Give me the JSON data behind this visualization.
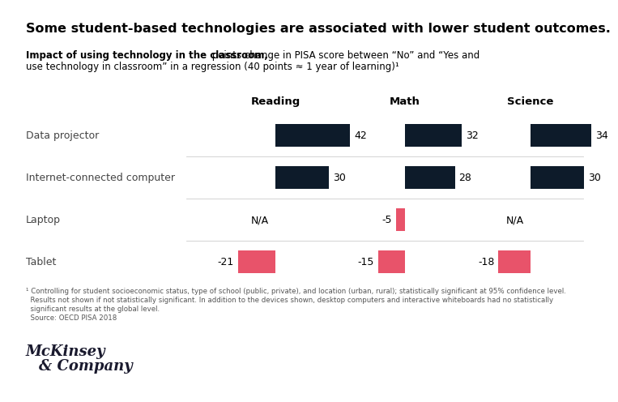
{
  "title": "Some student-based technologies are associated with lower student outcomes.",
  "subtitle_bold": "Impact of using technology in the classroom,",
  "subtitle_regular": " points change in PISA score between “No” and “Yes and\nuse technology in classroom” in a regression (40 points ≈ 1 year of learning)¹",
  "groups": [
    "Reading",
    "Math",
    "Science"
  ],
  "category_labels": [
    "Data projector",
    "Internet-connected computer",
    "Laptop",
    "Tablet"
  ],
  "values": {
    "Reading": [
      42,
      30,
      null,
      -21
    ],
    "Math": [
      32,
      28,
      -5,
      -15
    ],
    "Science": [
      34,
      30,
      null,
      -18
    ]
  },
  "na_labels": {
    "Reading": [
      false,
      false,
      true,
      false
    ],
    "Math": [
      false,
      false,
      false,
      false
    ],
    "Science": [
      false,
      false,
      true,
      false
    ]
  },
  "positive_color": "#0d1b2a",
  "negative_color": "#e8536a",
  "footnote_line1": "¹ Controlling for student socioeconomic status, type of school (public, private), and location (urban, rural); statistically significant at 95% confidence level.",
  "footnote_line2": "  Results not shown if not statistically significant. In addition to the devices shown, desktop computers and interactive whiteboards had no statistically",
  "footnote_line3": "  significant results at the global level.",
  "footnote_line4": "  Source: OECD PISA 2018",
  "bg_color": "#ffffff"
}
